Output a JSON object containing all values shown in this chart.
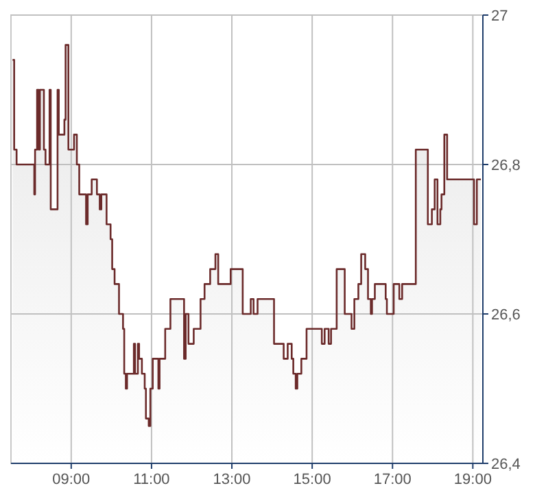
{
  "chart_data": {
    "type": "area",
    "color": "#6b2a2a",
    "x": [
      7.54,
      7.58,
      7.58,
      7.64,
      7.64,
      8.08,
      8.08,
      8.1,
      8.1,
      8.15,
      8.15,
      8.19,
      8.19,
      8.22,
      8.22,
      8.32,
      8.32,
      8.36,
      8.36,
      8.46,
      8.46,
      8.49,
      8.49,
      8.66,
      8.66,
      8.69,
      8.69,
      8.83,
      8.83,
      8.86,
      8.86,
      8.93,
      8.93,
      9.07,
      9.07,
      9.14,
      9.14,
      9.2,
      9.2,
      9.37,
      9.37,
      9.41,
      9.41,
      9.51,
      9.51,
      9.64,
      9.64,
      9.71,
      9.71,
      9.75,
      9.75,
      9.88,
      9.88,
      9.98,
      9.98,
      10.02,
      10.02,
      10.08,
      10.08,
      10.19,
      10.19,
      10.29,
      10.29,
      10.32,
      10.32,
      10.36,
      10.36,
      10.39,
      10.39,
      10.56,
      10.56,
      10.59,
      10.59,
      10.66,
      10.66,
      10.69,
      10.69,
      10.76,
      10.76,
      10.83,
      10.83,
      10.86,
      10.86,
      10.93,
      10.93,
      10.97,
      10.97,
      11.03,
      11.03,
      11.17,
      11.17,
      11.2,
      11.2,
      11.34,
      11.34,
      11.47,
      11.47,
      11.81,
      11.81,
      11.85,
      11.85,
      11.92,
      11.92,
      12.05,
      12.05,
      12.22,
      12.22,
      12.32,
      12.32,
      12.46,
      12.46,
      12.59,
      12.59,
      12.66,
      12.66,
      12.97,
      12.97,
      13.27,
      13.27,
      13.47,
      13.47,
      13.54,
      13.54,
      13.64,
      13.64,
      14.05,
      14.05,
      14.29,
      14.29,
      14.39,
      14.39,
      14.49,
      14.49,
      14.53,
      14.53,
      14.59,
      14.59,
      14.63,
      14.63,
      14.73,
      14.73,
      14.86,
      14.86,
      15.24,
      15.24,
      15.31,
      15.31,
      15.41,
      15.41,
      15.47,
      15.47,
      15.61,
      15.61,
      15.81,
      15.81,
      15.98,
      15.98,
      16.05,
      16.05,
      16.15,
      16.15,
      16.22,
      16.22,
      16.32,
      16.32,
      16.39,
      16.39,
      16.46,
      16.46,
      16.49,
      16.49,
      16.56,
      16.56,
      16.83,
      16.83,
      16.86,
      16.86,
      17.03,
      17.03,
      17.17,
      17.17,
      17.24,
      17.24,
      17.58,
      17.58,
      17.88,
      17.88,
      17.98,
      17.98,
      18.05,
      18.05,
      18.12,
      18.12,
      18.19,
      18.19,
      18.22,
      18.22,
      18.29,
      18.29,
      18.36,
      18.36,
      19.03,
      19.03,
      19.1,
      19.1,
      19.2
    ],
    "values": [
      26.94,
      26.94,
      26.82,
      26.82,
      26.8,
      26.8,
      26.76,
      26.76,
      26.82,
      26.82,
      26.9,
      26.9,
      26.82,
      26.82,
      26.9,
      26.9,
      26.82,
      26.82,
      26.8,
      26.8,
      26.9,
      26.9,
      26.74,
      26.74,
      26.9,
      26.9,
      26.84,
      26.84,
      26.86,
      26.86,
      26.96,
      26.96,
      26.82,
      26.82,
      26.84,
      26.84,
      26.8,
      26.8,
      26.76,
      26.76,
      26.72,
      26.72,
      26.76,
      26.76,
      26.78,
      26.78,
      26.76,
      26.76,
      26.74,
      26.74,
      26.76,
      26.76,
      26.72,
      26.72,
      26.7,
      26.7,
      26.66,
      26.66,
      26.64,
      26.64,
      26.6,
      26.6,
      26.58,
      26.58,
      26.52,
      26.52,
      26.5,
      26.5,
      26.52,
      26.52,
      26.56,
      26.56,
      26.52,
      26.52,
      26.56,
      26.56,
      26.54,
      26.54,
      26.52,
      26.52,
      26.5,
      26.5,
      26.46,
      26.46,
      26.45,
      26.45,
      26.5,
      26.5,
      26.54,
      26.54,
      26.5,
      26.5,
      26.54,
      26.54,
      26.58,
      26.58,
      26.62,
      26.62,
      26.54,
      26.54,
      26.6,
      26.6,
      26.56,
      26.56,
      26.58,
      26.58,
      26.62,
      26.62,
      26.64,
      26.64,
      26.66,
      26.66,
      26.68,
      26.68,
      26.64,
      26.64,
      26.66,
      26.66,
      26.6,
      26.6,
      26.62,
      26.62,
      26.6,
      26.6,
      26.62,
      26.62,
      26.56,
      26.56,
      26.54,
      26.54,
      26.56,
      26.56,
      26.54,
      26.54,
      26.52,
      26.52,
      26.5,
      26.5,
      26.52,
      26.52,
      26.54,
      26.54,
      26.58,
      26.58,
      26.56,
      26.56,
      26.58,
      26.58,
      26.56,
      26.56,
      26.58,
      26.58,
      26.66,
      26.66,
      26.6,
      26.6,
      26.58,
      26.58,
      26.62,
      26.62,
      26.64,
      26.64,
      26.68,
      26.68,
      26.66,
      26.66,
      26.62,
      26.62,
      26.6,
      26.6,
      26.62,
      26.62,
      26.64,
      26.64,
      26.62,
      26.62,
      26.6,
      26.6,
      26.64,
      26.64,
      26.62,
      26.62,
      26.64,
      26.64,
      26.82,
      26.82,
      26.72,
      26.72,
      26.74,
      26.74,
      26.78,
      26.78,
      26.72,
      26.72,
      26.74,
      26.74,
      26.76,
      26.76,
      26.84,
      26.84,
      26.78,
      26.78,
      26.72,
      26.72,
      26.78,
      26.78
    ],
    "xlim": [
      7.5,
      19.25
    ],
    "xticks": [
      {
        "value": 9,
        "label": "09:00"
      },
      {
        "value": 11,
        "label": "11:00"
      },
      {
        "value": 13,
        "label": "13:00"
      },
      {
        "value": 15,
        "label": "15:00"
      },
      {
        "value": 17,
        "label": "17:00"
      },
      {
        "value": 19,
        "label": "19:00"
      }
    ],
    "ylim": [
      26.4,
      27
    ],
    "yticks": [
      {
        "value": 26.4,
        "label": "26,4"
      },
      {
        "value": 26.6,
        "label": "26,6"
      },
      {
        "value": 26.8,
        "label": "26,8"
      },
      27
    ],
    "grid": true
  }
}
